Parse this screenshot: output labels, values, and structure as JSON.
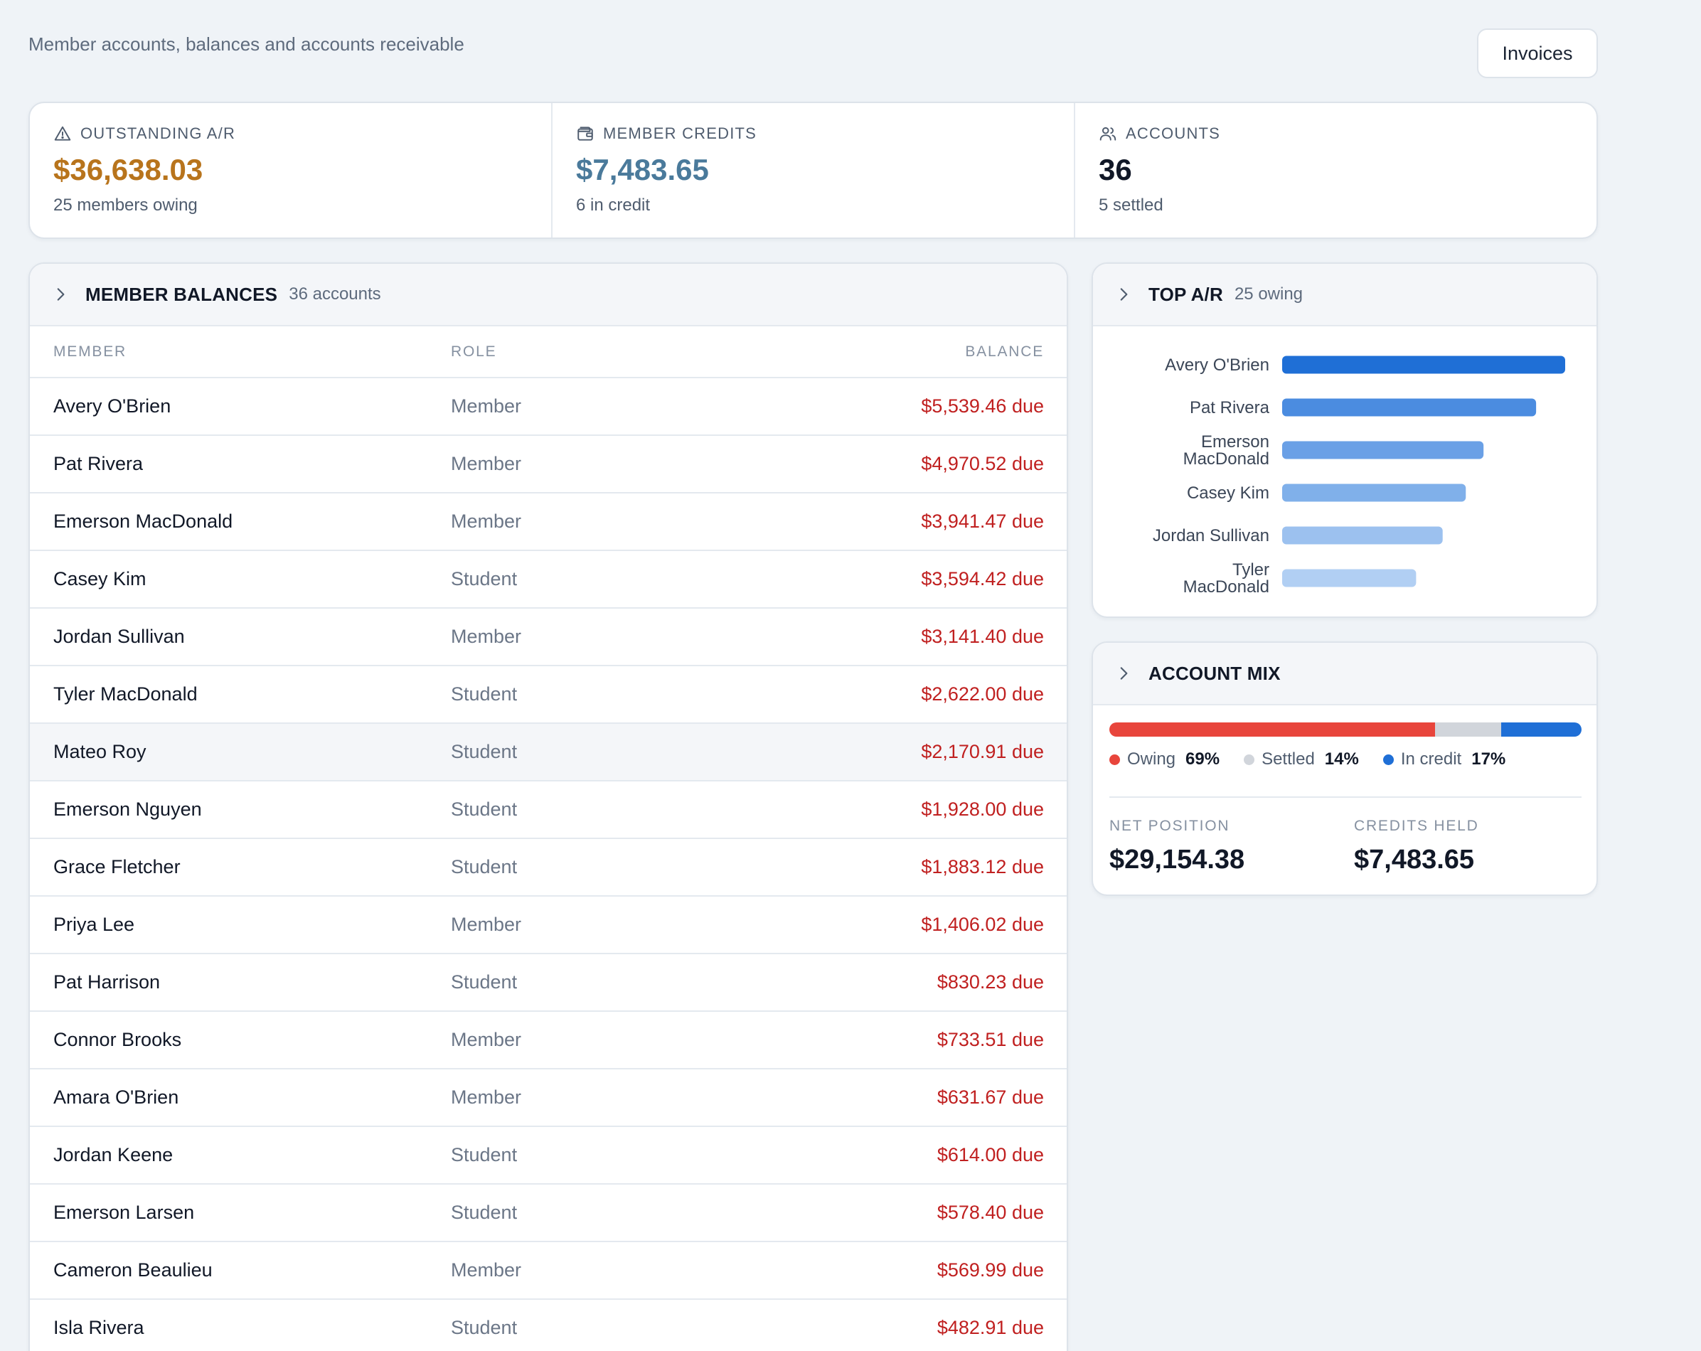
{
  "header": {
    "subtitle": "Member accounts, balances and accounts receivable",
    "invoices_label": "Invoices"
  },
  "stats": {
    "outstanding": {
      "label": "OUTSTANDING A/R",
      "value": "$36,638.03",
      "sub": "25 members owing",
      "icon": "alert-triangle-icon",
      "color": "#b8741c"
    },
    "credits": {
      "label": "MEMBER CREDITS",
      "value": "$7,483.65",
      "sub": "6 in credit",
      "icon": "wallet-icon",
      "color": "#4a7a9b"
    },
    "accounts": {
      "label": "ACCOUNTS",
      "value": "36",
      "sub": "5 settled",
      "icon": "users-icon",
      "color": "#111827"
    }
  },
  "balances": {
    "title": "MEMBER BALANCES",
    "count": "36 accounts",
    "columns": [
      "MEMBER",
      "ROLE",
      "BALANCE"
    ],
    "rows": [
      {
        "member": "Avery O'Brien",
        "role": "Member",
        "balance": "$5,539.46 due"
      },
      {
        "member": "Pat Rivera",
        "role": "Member",
        "balance": "$4,970.52 due"
      },
      {
        "member": "Emerson MacDonald",
        "role": "Member",
        "balance": "$3,941.47 due"
      },
      {
        "member": "Casey Kim",
        "role": "Student",
        "balance": "$3,594.42 due"
      },
      {
        "member": "Jordan Sullivan",
        "role": "Member",
        "balance": "$3,141.40 due"
      },
      {
        "member": "Tyler MacDonald",
        "role": "Student",
        "balance": "$2,622.00 due"
      },
      {
        "member": "Mateo Roy",
        "role": "Student",
        "balance": "$2,170.91 due"
      },
      {
        "member": "Emerson Nguyen",
        "role": "Student",
        "balance": "$1,928.00 due"
      },
      {
        "member": "Grace Fletcher",
        "role": "Student",
        "balance": "$1,883.12 due"
      },
      {
        "member": "Priya Lee",
        "role": "Member",
        "balance": "$1,406.02 due"
      },
      {
        "member": "Pat Harrison",
        "role": "Student",
        "balance": "$830.23 due"
      },
      {
        "member": "Connor Brooks",
        "role": "Member",
        "balance": "$733.51 due"
      },
      {
        "member": "Amara O'Brien",
        "role": "Member",
        "balance": "$631.67 due"
      },
      {
        "member": "Jordan Keene",
        "role": "Student",
        "balance": "$614.00 due"
      },
      {
        "member": "Emerson Larsen",
        "role": "Student",
        "balance": "$578.40 due"
      },
      {
        "member": "Cameron Beaulieu",
        "role": "Member",
        "balance": "$569.99 due"
      },
      {
        "member": "Isla Rivera",
        "role": "Student",
        "balance": "$482.91 due"
      }
    ]
  },
  "top_ar": {
    "title": "TOP A/R",
    "count": "25 owing"
  },
  "chart_data": {
    "type": "bar",
    "orientation": "horizontal",
    "categories": [
      [
        "Avery O'Brien"
      ],
      [
        "Pat Rivera"
      ],
      [
        "Emerson",
        "MacDonald"
      ],
      [
        "Casey Kim"
      ],
      [
        "Jordan Sullivan"
      ],
      [
        "Tyler",
        "MacDonald"
      ]
    ],
    "values": [
      5539.46,
      4970.52,
      3941.47,
      3594.42,
      3141.4,
      2622.0
    ],
    "colors": [
      "#1f6fd6",
      "#4b8ce0",
      "#6aa0e6",
      "#80b0ea",
      "#9cc1ef",
      "#b1cff3"
    ],
    "grid": false
  },
  "mix": {
    "title": "ACCOUNT MIX",
    "segments": [
      {
        "label": "Owing",
        "pct": "69%",
        "value": 69,
        "color": "#e8453c"
      },
      {
        "label": "Settled",
        "pct": "14%",
        "value": 14,
        "color": "#d1d5db"
      },
      {
        "label": "In credit",
        "pct": "17%",
        "value": 17,
        "color": "#1f6fd6"
      }
    ],
    "net_label": "NET POSITION",
    "net_value": "$29,154.38",
    "held_label": "CREDITS HELD",
    "held_value": "$7,483.65"
  }
}
